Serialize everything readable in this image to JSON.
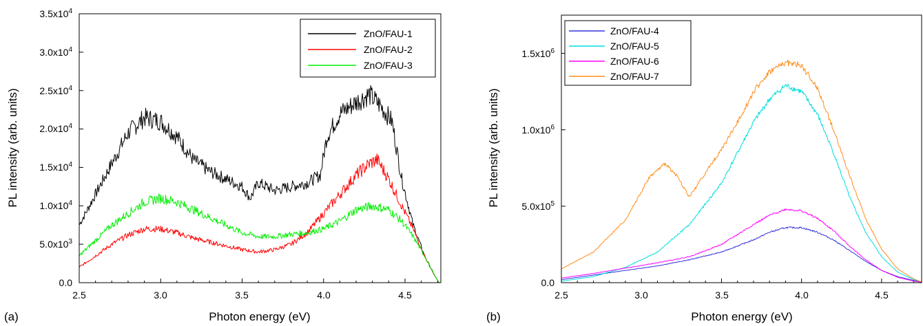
{
  "panels": [
    {
      "panel_label": "(a)",
      "xlabel": "Photon energy (eV)",
      "ylabel": "PL intensity (arb. units)",
      "xticks": [
        "2.5",
        "3.0",
        "3.5",
        "4.0",
        "4.5"
      ],
      "yticks": [
        {
          "mant": "0.0",
          "exp": ""
        },
        {
          "mant": "5.0x10",
          "exp": "3"
        },
        {
          "mant": "1.0x10",
          "exp": "4"
        },
        {
          "mant": "1.5x10",
          "exp": "4"
        },
        {
          "mant": "2.0x10",
          "exp": "4"
        },
        {
          "mant": "2.5x10",
          "exp": "4"
        },
        {
          "mant": "3.0x10",
          "exp": "4"
        },
        {
          "mant": "3.5x10",
          "exp": "4"
        }
      ],
      "legend_placement": "top-right"
    },
    {
      "panel_label": "(b)",
      "xlabel": "Photon energy (eV)",
      "ylabel": "PL intensity (arb. units)",
      "xticks": [
        "2.5",
        "3.0",
        "3.5",
        "4.0",
        "4.5"
      ],
      "yticks": [
        {
          "mant": "0.0",
          "exp": ""
        },
        {
          "mant": "5.0x10",
          "exp": "5"
        },
        {
          "mant": "1.0x10",
          "exp": "6"
        },
        {
          "mant": "1.5x10",
          "exp": "6"
        }
      ],
      "legend_placement": "top-left"
    }
  ],
  "chart_data": [
    {
      "type": "line",
      "xlim": [
        2.5,
        4.72
      ],
      "ylim": [
        0,
        35000
      ],
      "grid": false,
      "legend": "top-right",
      "series": [
        {
          "name": "ZnO/FAU-1",
          "color": "#000000",
          "x": [
            2.5,
            2.6,
            2.7,
            2.8,
            2.9,
            3.0,
            3.1,
            3.2,
            3.3,
            3.4,
            3.5,
            3.55,
            3.6,
            3.7,
            3.8,
            3.9,
            3.98,
            4.02,
            4.1,
            4.2,
            4.28,
            4.35,
            4.42,
            4.48,
            4.55,
            4.62,
            4.68,
            4.71
          ],
          "y": [
            7500,
            11500,
            15500,
            19500,
            21500,
            21000,
            19000,
            16000,
            14500,
            13500,
            12500,
            11000,
            13000,
            12000,
            12500,
            13000,
            14000,
            19000,
            22000,
            23500,
            24500,
            23000,
            21000,
            13500,
            7500,
            3500,
            1000,
            0
          ]
        },
        {
          "name": "ZnO/FAU-2",
          "color": "#ff0000",
          "x": [
            2.5,
            2.6,
            2.7,
            2.8,
            2.9,
            3.0,
            3.1,
            3.2,
            3.3,
            3.4,
            3.5,
            3.6,
            3.7,
            3.8,
            3.9,
            4.0,
            4.1,
            4.2,
            4.28,
            4.33,
            4.4,
            4.48,
            4.55,
            4.62,
            4.68,
            4.71
          ],
          "y": [
            2000,
            3500,
            5000,
            6200,
            7000,
            7000,
            6500,
            5800,
            5300,
            4800,
            4300,
            4000,
            4300,
            5000,
            6500,
            9000,
            11500,
            14000,
            15500,
            16000,
            13500,
            10000,
            7000,
            3500,
            1000,
            0
          ]
        },
        {
          "name": "ZnO/FAU-3",
          "color": "#00ee00",
          "x": [
            2.5,
            2.6,
            2.7,
            2.8,
            2.9,
            3.0,
            3.1,
            3.2,
            3.3,
            3.4,
            3.5,
            3.6,
            3.7,
            3.8,
            3.9,
            4.0,
            4.1,
            4.2,
            4.3,
            4.4,
            4.48,
            4.55,
            4.62,
            4.68,
            4.71
          ],
          "y": [
            3500,
            5500,
            7500,
            9000,
            10500,
            11000,
            10500,
            9500,
            8500,
            7500,
            6500,
            6000,
            6000,
            6300,
            6500,
            7000,
            8000,
            9500,
            10000,
            9500,
            8000,
            6000,
            3500,
            1000,
            0
          ]
        }
      ]
    },
    {
      "type": "line",
      "xlim": [
        2.5,
        4.75
      ],
      "ylim": [
        0,
        1750000
      ],
      "grid": false,
      "legend": "top-left",
      "series": [
        {
          "name": "ZnO/FAU-4",
          "color": "#3333dd",
          "x": [
            2.5,
            2.7,
            2.9,
            3.1,
            3.3,
            3.5,
            3.7,
            3.8,
            3.9,
            4.0,
            4.1,
            4.2,
            4.3,
            4.4,
            4.5,
            4.6,
            4.7,
            4.75
          ],
          "y": [
            20000,
            50000,
            80000,
            110000,
            150000,
            200000,
            280000,
            330000,
            360000,
            360000,
            330000,
            280000,
            210000,
            140000,
            80000,
            40000,
            15000,
            5000
          ]
        },
        {
          "name": "ZnO/FAU-5",
          "color": "#00dddd",
          "x": [
            2.5,
            2.7,
            2.9,
            3.1,
            3.3,
            3.5,
            3.6,
            3.7,
            3.8,
            3.9,
            4.0,
            4.1,
            4.2,
            4.3,
            4.4,
            4.5,
            4.6,
            4.7,
            4.75
          ],
          "y": [
            10000,
            40000,
            100000,
            200000,
            380000,
            650000,
            850000,
            1050000,
            1200000,
            1290000,
            1250000,
            1100000,
            850000,
            560000,
            330000,
            170000,
            70000,
            20000,
            5000
          ]
        },
        {
          "name": "ZnO/FAU-6",
          "color": "#ff00ff",
          "x": [
            2.5,
            2.7,
            2.9,
            3.1,
            3.3,
            3.5,
            3.7,
            3.8,
            3.9,
            4.0,
            4.1,
            4.2,
            4.3,
            4.4,
            4.5,
            4.6,
            4.7,
            4.75
          ],
          "y": [
            30000,
            60000,
            95000,
            130000,
            170000,
            250000,
            380000,
            440000,
            480000,
            470000,
            420000,
            340000,
            240000,
            150000,
            80000,
            35000,
            10000,
            3000
          ]
        },
        {
          "name": "ZnO/FAU-7",
          "color": "#ff8c1a",
          "x": [
            2.5,
            2.7,
            2.9,
            3.05,
            3.15,
            3.22,
            3.3,
            3.4,
            3.5,
            3.6,
            3.7,
            3.8,
            3.9,
            4.0,
            4.1,
            4.2,
            4.3,
            4.4,
            4.5,
            4.6,
            4.7,
            4.75
          ],
          "y": [
            90000,
            200000,
            410000,
            690000,
            780000,
            700000,
            560000,
            720000,
            870000,
            1050000,
            1250000,
            1380000,
            1440000,
            1420000,
            1270000,
            1000000,
            700000,
            420000,
            220000,
            90000,
            25000,
            5000
          ]
        }
      ]
    }
  ]
}
